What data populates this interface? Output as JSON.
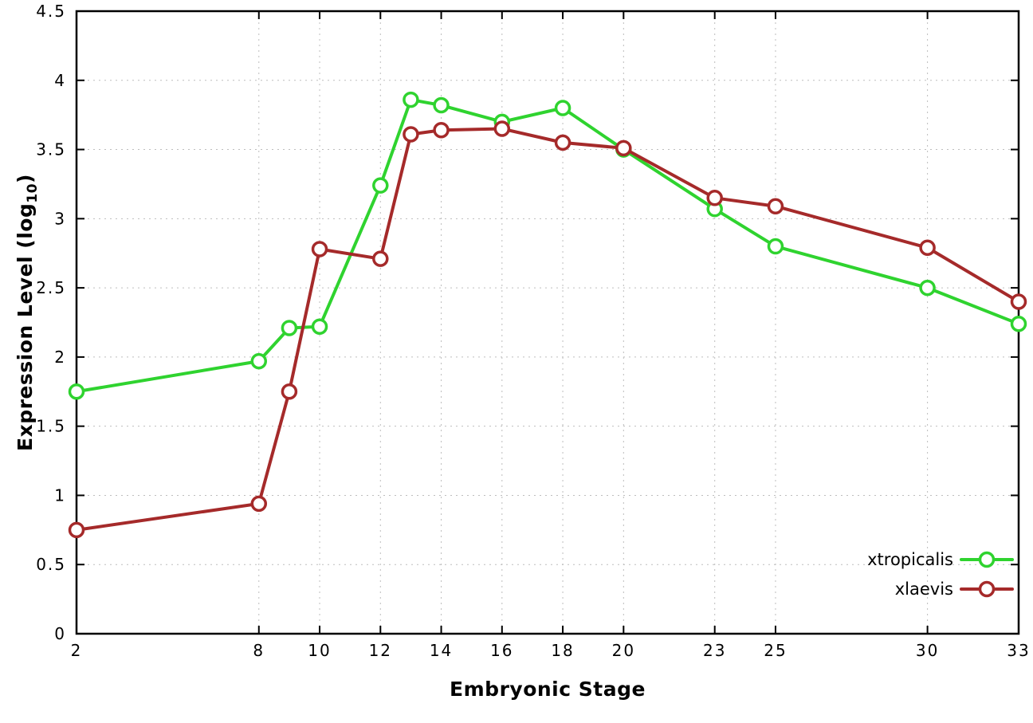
{
  "chart_data": {
    "type": "line",
    "title": "",
    "xlabel": "Embryonic Stage",
    "ylabel": "Expression Level (log10)",
    "ylabel_parts": {
      "pre": "Expression Level (log",
      "sub": "10",
      "post": ")"
    },
    "x": [
      2,
      8,
      9,
      10,
      12,
      13,
      14,
      16,
      18,
      20,
      23,
      25,
      30,
      33
    ],
    "series": [
      {
        "name": "xtropicalis",
        "color": "#2fd32f",
        "values": [
          1.75,
          1.97,
          2.21,
          2.22,
          3.24,
          3.86,
          3.82,
          3.7,
          3.8,
          3.5,
          3.07,
          2.8,
          2.5,
          2.24
        ]
      },
      {
        "name": "xlaevis",
        "color": "#a52a2a",
        "values": [
          0.75,
          0.94,
          1.75,
          2.78,
          2.71,
          3.61,
          3.64,
          3.65,
          3.55,
          3.51,
          3.15,
          3.09,
          2.79,
          2.4
        ]
      }
    ],
    "xlim": [
      2,
      33
    ],
    "ylim": [
      0,
      4.5
    ],
    "xticks": {
      "values": [
        2,
        8,
        10,
        12,
        14,
        16,
        18,
        20,
        23,
        25,
        30,
        33
      ],
      "labels": [
        "2",
        "8",
        "10",
        "12",
        "14",
        "16",
        "18",
        "20",
        "23",
        "25",
        "30",
        "33"
      ]
    },
    "yticks": {
      "values": [
        0,
        0.5,
        1,
        1.5,
        2,
        2.5,
        3,
        3.5,
        4,
        4.5
      ],
      "labels": [
        "0",
        "0.5",
        "1",
        "1.5",
        "2",
        "2.5",
        "3",
        "3.5",
        "4",
        "4.5"
      ]
    },
    "grid": true,
    "legend_position": "bottom-right",
    "colors": {
      "background": "#ffffff",
      "axis": "#000000",
      "grid": "#bdbdbd",
      "tick_label": "#000000",
      "marker_fill": "#ffffff"
    }
  }
}
